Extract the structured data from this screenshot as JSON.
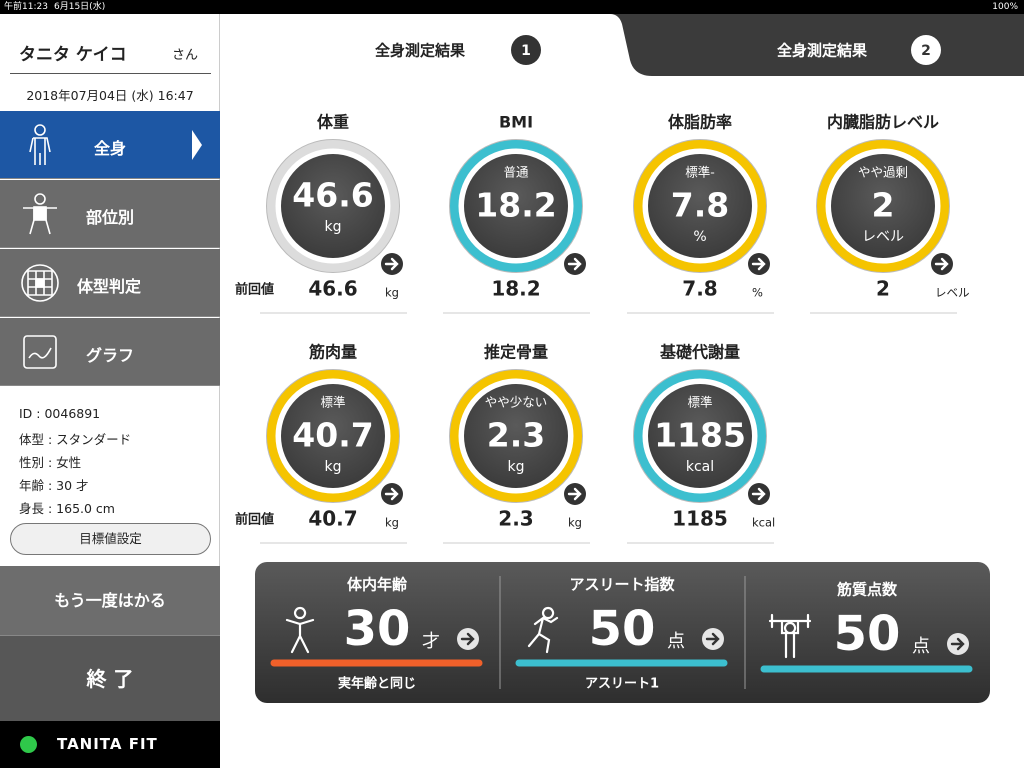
{
  "status_bar": {
    "time": "午前11:23",
    "date": "6月15日(水)",
    "battery": "100%"
  },
  "sidebar": {
    "user_name": "タニタ ケイコ",
    "honorific": "さん",
    "datetime": "2018年07月04日 (水) 16:47",
    "menu": [
      "全身",
      "部位別",
      "体型判定",
      "グラフ"
    ],
    "profile": [
      "ID : 0046891",
      "体型 : スタンダード",
      "性別 : 女性",
      "年齢 : 30 才",
      "身長 : 165.0 cm"
    ],
    "goal_button": "目標値設定",
    "remeasure_button": "もう一度はかる",
    "exit_button": "終 了",
    "brand": "TANITA FIT"
  },
  "tabs": [
    {
      "label": "全身測定結果",
      "number": "1"
    },
    {
      "label": "全身測定結果",
      "number": "2"
    }
  ],
  "metrics": [
    {
      "title": "体重",
      "value": "46.6",
      "unit": "kg",
      "previous_label": "前回値",
      "previous_value": "46.6",
      "previous_unit": "kg",
      "ring_color": "#dcdcdc"
    },
    {
      "title": "BMI",
      "status": "普通",
      "value": "18.2",
      "previous_value": "18.2",
      "ring_color": "#3cbfcf"
    },
    {
      "title": "体脂肪率",
      "status": "標準-",
      "value": "7.8",
      "unit": "%",
      "previous_value": "7.8",
      "previous_unit": "%",
      "ring_color": "#f5c400"
    },
    {
      "title": "内臓脂肪レベル",
      "status": "やや過剰",
      "value": "2",
      "unit": "レベル",
      "previous_value": "2",
      "previous_unit": "レベル",
      "ring_color": "#f5c400"
    },
    {
      "title": "筋肉量",
      "status": "標準",
      "value": "40.7",
      "unit": "kg",
      "previous_label": "前回値",
      "previous_value": "40.7",
      "previous_unit": "kg",
      "ring_color": "#f5c400"
    },
    {
      "title": "推定骨量",
      "status": "やや少ない",
      "value": "2.3",
      "unit": "kg",
      "previous_value": "2.3",
      "previous_unit": "kg",
      "ring_color": "#f5c400"
    },
    {
      "title": "基礎代謝量",
      "status": "標準",
      "value": "1185",
      "unit": "kcal",
      "previous_value": "1185",
      "previous_unit": "kcal",
      "ring_color": "#3cbfcf"
    }
  ],
  "scores": [
    {
      "title": "体内年齢",
      "value": "30",
      "unit": "才",
      "caption": "実年齢と同じ",
      "bar_color": "#f0602a"
    },
    {
      "title": "アスリート指数",
      "value": "50",
      "unit": "点",
      "caption": "アスリート1",
      "bar_color": "#3cbfcf"
    },
    {
      "title": "筋質点数",
      "value": "50",
      "unit": "点",
      "bar_color": "#3cbfcf"
    }
  ]
}
